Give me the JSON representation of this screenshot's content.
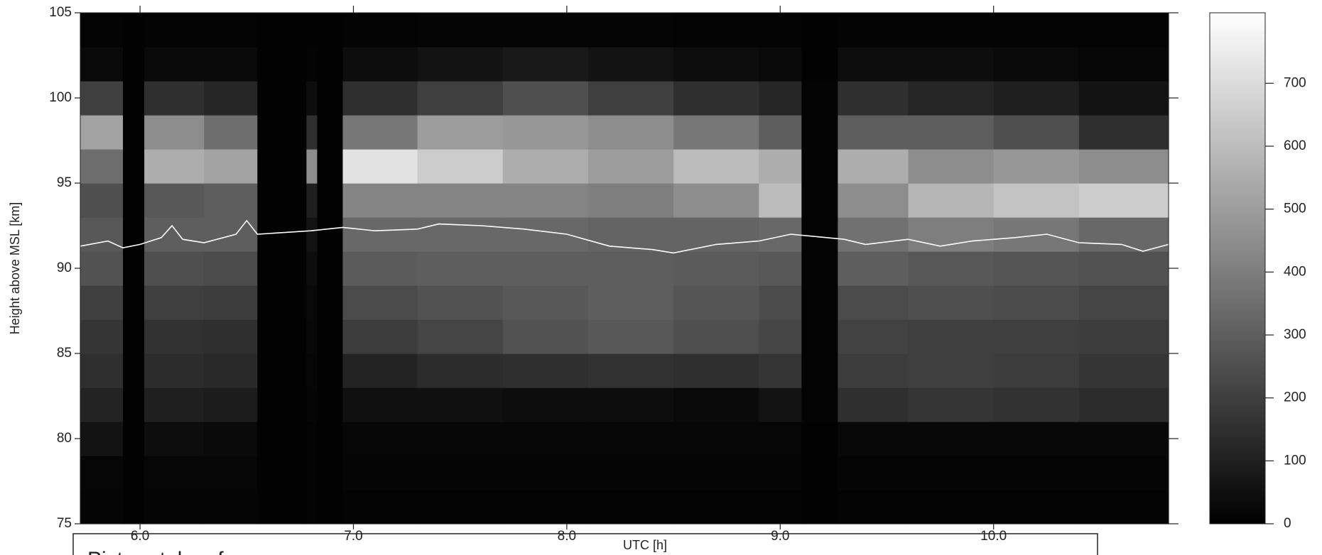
{
  "chart_data": {
    "type": "heatmap",
    "ylabel": "Height above MSL [km]",
    "xlabel": "UTC [h]",
    "annotation": "Picture taken from:",
    "xlim": [
      5.72,
      10.82
    ],
    "ylim": [
      75,
      105
    ],
    "xticks": [
      {
        "value": 6,
        "label": "6.0"
      },
      {
        "value": 7,
        "label": "7.0"
      },
      {
        "value": 8,
        "label": "8.0"
      },
      {
        "value": 9,
        "label": "9.0"
      },
      {
        "value": 10,
        "label": "10.0"
      }
    ],
    "yticks": [
      75,
      80,
      85,
      90,
      95,
      100,
      105
    ],
    "clim": [
      0,
      812
    ],
    "cticks": [
      0,
      100,
      200,
      300,
      400,
      500,
      600,
      700
    ],
    "colormap": "gray",
    "x_edges": [
      5.72,
      5.92,
      6.02,
      6.3,
      6.55,
      6.78,
      6.83,
      6.95,
      7.3,
      7.7,
      8.1,
      8.5,
      8.9,
      9.1,
      9.27,
      9.6,
      10.0,
      10.4,
      10.82
    ],
    "y_edges": [
      75,
      77,
      79,
      81,
      83,
      85,
      87,
      89,
      91,
      93,
      95,
      97,
      99,
      101,
      103,
      105
    ],
    "z": [
      [
        15,
        5,
        15,
        15,
        5,
        10,
        5,
        10,
        10,
        10,
        10,
        10,
        10,
        5,
        10,
        10,
        10,
        10
      ],
      [
        20,
        5,
        20,
        20,
        5,
        10,
        5,
        15,
        15,
        15,
        15,
        15,
        15,
        5,
        15,
        15,
        15,
        15
      ],
      [
        60,
        5,
        40,
        30,
        5,
        10,
        5,
        20,
        20,
        20,
        20,
        20,
        20,
        5,
        25,
        25,
        25,
        25
      ],
      [
        110,
        5,
        100,
        90,
        5,
        15,
        5,
        50,
        50,
        40,
        40,
        30,
        60,
        10,
        150,
        170,
        160,
        140
      ],
      [
        150,
        5,
        140,
        130,
        5,
        20,
        5,
        110,
        140,
        150,
        160,
        150,
        170,
        10,
        190,
        200,
        190,
        170
      ],
      [
        170,
        5,
        160,
        150,
        5,
        25,
        5,
        190,
        220,
        260,
        280,
        250,
        220,
        10,
        210,
        200,
        200,
        190
      ],
      [
        200,
        5,
        200,
        190,
        5,
        30,
        5,
        240,
        260,
        280,
        300,
        270,
        240,
        10,
        240,
        250,
        240,
        220
      ],
      [
        260,
        5,
        250,
        240,
        5,
        40,
        5,
        290,
        300,
        300,
        300,
        290,
        280,
        10,
        300,
        280,
        270,
        260
      ],
      [
        280,
        5,
        300,
        300,
        5,
        60,
        5,
        330,
        330,
        330,
        320,
        320,
        330,
        10,
        360,
        400,
        380,
        330
      ],
      [
        250,
        5,
        280,
        300,
        5,
        100,
        5,
        420,
        420,
        420,
        400,
        450,
        600,
        10,
        450,
        580,
        620,
        650
      ],
      [
        350,
        5,
        550,
        520,
        5,
        450,
        5,
        720,
        650,
        550,
        500,
        600,
        550,
        10,
        550,
        450,
        480,
        450
      ],
      [
        520,
        5,
        450,
        350,
        5,
        150,
        5,
        380,
        500,
        480,
        450,
        380,
        300,
        10,
        300,
        300,
        250,
        150
      ],
      [
        200,
        5,
        150,
        120,
        5,
        40,
        5,
        150,
        200,
        250,
        200,
        150,
        120,
        10,
        150,
        120,
        100,
        60
      ],
      [
        30,
        5,
        30,
        30,
        5,
        10,
        5,
        40,
        60,
        80,
        60,
        40,
        30,
        5,
        40,
        40,
        30,
        20
      ],
      [
        10,
        5,
        10,
        10,
        5,
        5,
        5,
        10,
        15,
        15,
        15,
        10,
        10,
        5,
        10,
        10,
        10,
        10
      ]
    ],
    "overlay": {
      "color": "#ffffff",
      "x": [
        5.72,
        5.85,
        5.92,
        6.0,
        6.1,
        6.15,
        6.2,
        6.3,
        6.45,
        6.5,
        6.55,
        6.8,
        6.95,
        7.1,
        7.3,
        7.4,
        7.6,
        7.8,
        8.0,
        8.2,
        8.4,
        8.5,
        8.7,
        8.9,
        9.05,
        9.3,
        9.4,
        9.6,
        9.75,
        9.9,
        10.1,
        10.25,
        10.4,
        10.6,
        10.7,
        10.82
      ],
      "values": [
        91.3,
        91.6,
        91.2,
        91.4,
        91.8,
        92.5,
        91.7,
        91.5,
        92.0,
        92.8,
        92.0,
        92.2,
        92.4,
        92.2,
        92.3,
        92.6,
        92.5,
        92.3,
        92.0,
        91.3,
        91.1,
        90.9,
        91.4,
        91.6,
        92.0,
        91.7,
        91.4,
        91.7,
        91.3,
        91.6,
        91.8,
        92.0,
        91.5,
        91.4,
        91.0,
        91.4
      ]
    }
  }
}
